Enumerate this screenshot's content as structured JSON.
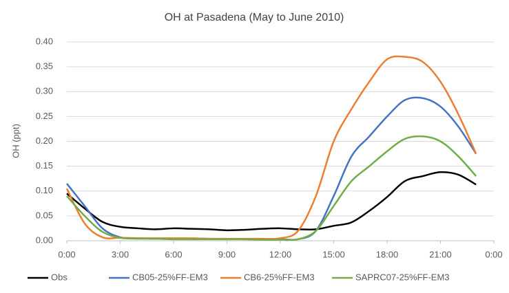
{
  "chart_data": {
    "type": "line",
    "title": "OH at Pasadena (May to June 2010)",
    "y_label": "OH (ppt)",
    "x": [
      0,
      1,
      2,
      3,
      4,
      5,
      6,
      7,
      8,
      9,
      10,
      11,
      12,
      13,
      14,
      15,
      16,
      17,
      18,
      19,
      20,
      21,
      22,
      23
    ],
    "xlim": [
      0,
      24
    ],
    "xticks": [
      {
        "value": 0,
        "label": "0:00"
      },
      {
        "value": 3,
        "label": "3:00"
      },
      {
        "value": 6,
        "label": "6:00"
      },
      {
        "value": 9,
        "label": "9:00"
      },
      {
        "value": 12,
        "label": "12:00"
      },
      {
        "value": 15,
        "label": "15:00"
      },
      {
        "value": 18,
        "label": "18:00"
      },
      {
        "value": 21,
        "label": "21:00"
      },
      {
        "value": 24,
        "label": "0:00"
      }
    ],
    "ylim": [
      0,
      0.4
    ],
    "yticks": [
      {
        "value": 0,
        "label": "0.00"
      },
      {
        "value": 0.05,
        "label": "0.05"
      },
      {
        "value": 0.1,
        "label": "0.10"
      },
      {
        "value": 0.15,
        "label": "0.15"
      },
      {
        "value": 0.2,
        "label": "0.20"
      },
      {
        "value": 0.25,
        "label": "0.25"
      },
      {
        "value": 0.3,
        "label": "0.30"
      },
      {
        "value": 0.35,
        "label": "0.35"
      },
      {
        "value": 0.4,
        "label": "0.40"
      }
    ],
    "grid": true,
    "legend": "bottom",
    "series": [
      {
        "name": "Obs",
        "color": "#000000",
        "values": [
          0.095,
          0.065,
          0.038,
          0.028,
          0.025,
          0.023,
          0.025,
          0.024,
          0.023,
          0.021,
          0.022,
          0.024,
          0.025,
          0.023,
          0.023,
          0.03,
          0.037,
          0.06,
          0.088,
          0.12,
          0.13,
          0.138,
          0.133,
          0.113
        ]
      },
      {
        "name": "CB05-25%FF-EM3",
        "color": "#4472c4",
        "values": [
          0.115,
          0.07,
          0.025,
          0.007,
          0.005,
          0.004,
          0.004,
          0.004,
          0.004,
          0.003,
          0.003,
          0.003,
          0.003,
          0.003,
          0.02,
          0.09,
          0.17,
          0.21,
          0.25,
          0.283,
          0.287,
          0.27,
          0.23,
          0.175
        ]
      },
      {
        "name": "CB6-25%FF-EM3",
        "color": "#ed7d31",
        "values": [
          0.105,
          0.035,
          0.007,
          0.006,
          0.005,
          0.005,
          0.005,
          0.005,
          0.004,
          0.004,
          0.004,
          0.004,
          0.005,
          0.02,
          0.09,
          0.2,
          0.265,
          0.32,
          0.365,
          0.37,
          0.36,
          0.32,
          0.255,
          0.175
        ]
      },
      {
        "name": "SAPRC07-25%FF-EM3",
        "color": "#70ad47",
        "values": [
          0.09,
          0.05,
          0.018,
          0.006,
          0.004,
          0.004,
          0.003,
          0.003,
          0.003,
          0.003,
          0.003,
          0.002,
          0.002,
          0.003,
          0.02,
          0.07,
          0.12,
          0.15,
          0.18,
          0.205,
          0.21,
          0.2,
          0.17,
          0.13
        ]
      }
    ]
  }
}
